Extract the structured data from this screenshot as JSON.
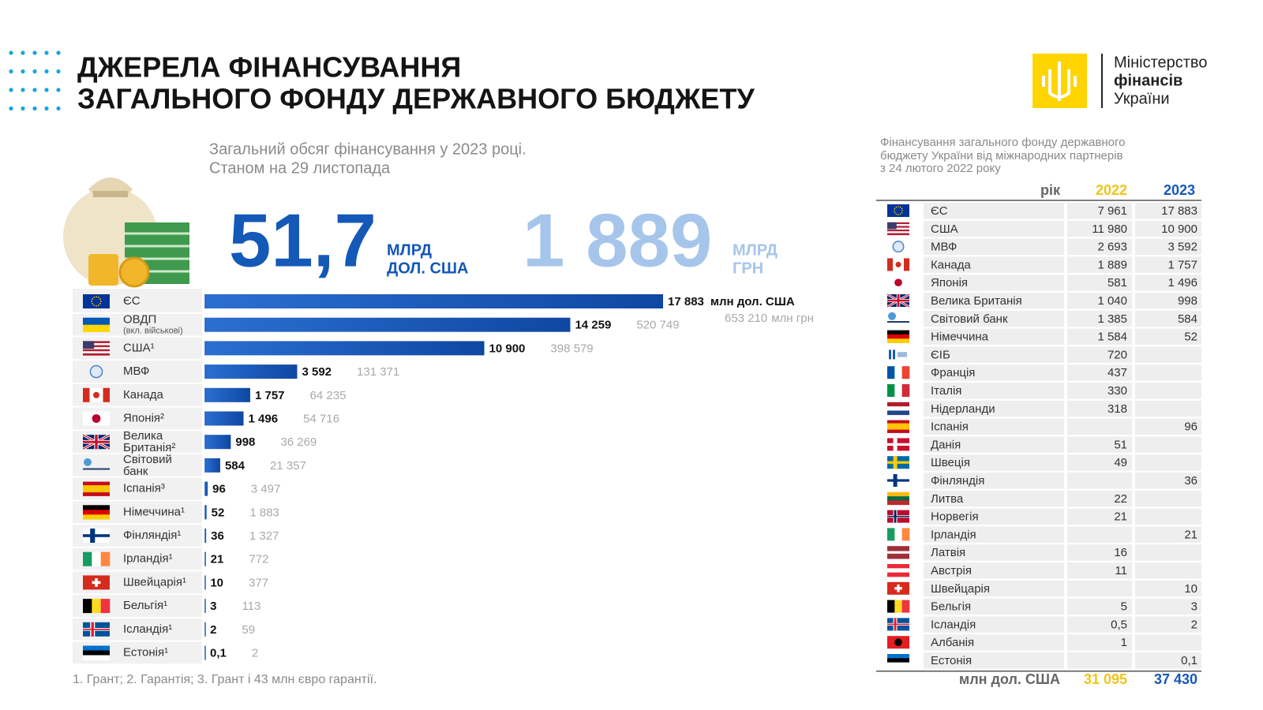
{
  "header": {
    "title": [
      "ДЖЕРЕЛА ФІНАНСУВАННЯ",
      "ЗАГАЛЬНОГО ФОНДУ ДЕРЖАВНОГО БЮДЖЕТУ"
    ],
    "subtitle": [
      "Загальний обсяг фінансування у 2023 році.",
      "Станом на 29 листопада"
    ]
  },
  "logo": [
    "Міністерство",
    "фінансів",
    "України"
  ],
  "summary": {
    "usd_value": "51,7",
    "usd_unit": [
      "МЛРД",
      "ДОЛ. США"
    ],
    "uah_value": "1 889",
    "uah_unit": [
      "МЛРД",
      "ГРН"
    ]
  },
  "chart_data": {
    "type": "bar",
    "orientation": "horizontal",
    "color": "#1a5cc0",
    "categories": [
      "ЄС",
      "ОВДП",
      "США¹",
      "МВФ",
      "Канада",
      "Японія²",
      "Велика Британія²",
      "Світовий банк",
      "Іспанія³",
      "Німеччина¹",
      "Фінляндія¹",
      "Ірландія¹",
      "Швейцарія¹",
      "Бельгія¹",
      "Ісландія¹",
      "Естонія¹"
    ],
    "category_notes": [
      null,
      "(вкл. військові)",
      null,
      null,
      null,
      null,
      null,
      null,
      null,
      null,
      null,
      null,
      null,
      null,
      null,
      null
    ],
    "values": [
      17883,
      14259,
      10900,
      3592,
      1757,
      1496,
      998,
      584,
      96,
      52,
      36,
      21,
      10,
      3,
      2,
      0.1
    ],
    "value_labels": [
      "17 883",
      "14 259",
      "10 900",
      "3 592",
      "1 757",
      "1 496",
      "998",
      "584",
      "96",
      "52",
      "36",
      "21",
      "10",
      "3",
      "2",
      "0,1"
    ],
    "value_unit": "млн дол. США",
    "secondary_value_labels": [
      "653 210",
      "520 749",
      "398 579",
      "131 371",
      "64 235",
      "54 716",
      "36 269",
      "21 357",
      "3 497",
      "1 883",
      "1 327",
      "772",
      "377",
      "113",
      "59",
      "2"
    ],
    "secondary_unit": "млн грн"
  },
  "footnote": "1. Грант; 2. Гарантія; 3. Грант і 43 млн євро гарантії.",
  "table": {
    "caption": [
      "Фінансування загального фонду державного",
      "бюджету України від міжнародних партнерів",
      "з 24 лютого 2022 року"
    ],
    "header": [
      "рік",
      "2022",
      "2023"
    ],
    "rows": [
      [
        "ЄС",
        "7 961",
        "17 883"
      ],
      [
        "США",
        "11 980",
        "10 900"
      ],
      [
        "МВФ",
        "2 693",
        "3 592"
      ],
      [
        "Канада",
        "1 889",
        "1 757"
      ],
      [
        "Японія",
        "581",
        "1 496"
      ],
      [
        "Велика Британія",
        "1 040",
        "998"
      ],
      [
        "Світовий банк",
        "1 385",
        "584"
      ],
      [
        "Німеччина",
        "1 584",
        "52"
      ],
      [
        "ЄІБ",
        "720",
        null
      ],
      [
        "Франція",
        "437",
        null
      ],
      [
        "Італія",
        "330",
        null
      ],
      [
        "Нідерланди",
        "318",
        null
      ],
      [
        "Іспанія",
        null,
        "96"
      ],
      [
        "Данія",
        "51",
        null
      ],
      [
        "Швеція",
        "49",
        null
      ],
      [
        "Фінляндія",
        null,
        "36"
      ],
      [
        "Литва",
        "22",
        null
      ],
      [
        "Норвегія",
        "21",
        null
      ],
      [
        "Ірландія",
        null,
        "21"
      ],
      [
        "Латвія",
        "16",
        null
      ],
      [
        "Австрія",
        "11",
        null
      ],
      [
        "Швейцарія",
        null,
        "10"
      ],
      [
        "Бельгія",
        "5",
        "3"
      ],
      [
        "Ісландія",
        "0,5",
        "2"
      ],
      [
        "Албанія",
        "1",
        null
      ],
      [
        "Естонія",
        null,
        "0,1"
      ]
    ],
    "total": [
      "млн дол. США",
      "31 095",
      "37 430"
    ]
  }
}
